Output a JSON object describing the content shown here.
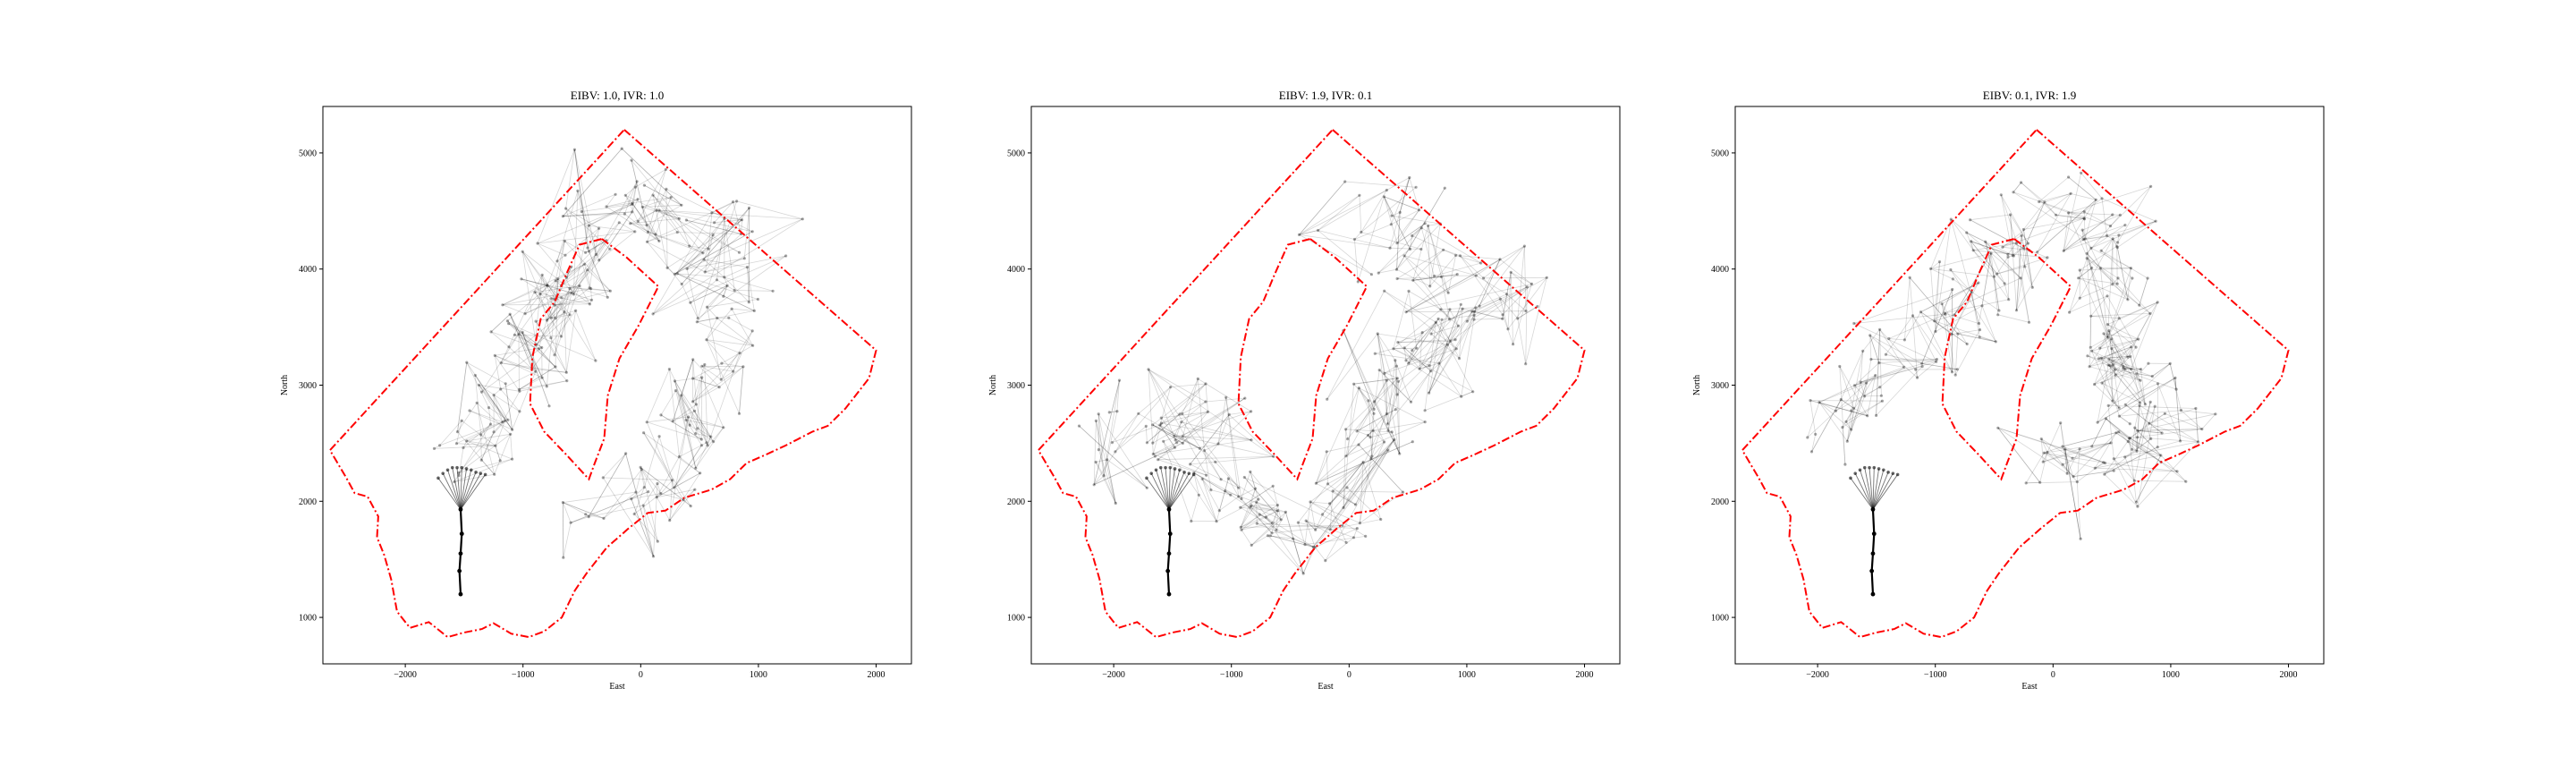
{
  "chart_data": [
    {
      "type": "line",
      "title": "EIBV: 1.0, IVR: 1.0",
      "xlabel": "East",
      "ylabel": "North",
      "xlim": [
        -2700,
        2300
      ],
      "ylim": [
        600,
        5400
      ],
      "xticks": [
        -2000,
        -1000,
        0,
        1000,
        2000
      ],
      "xtick_labels": [
        "−2000",
        "−1000",
        "0",
        "1000",
        "2000"
      ],
      "yticks": [
        1000,
        2000,
        3000,
        4000,
        5000
      ],
      "ytick_labels": [
        "1000",
        "2000",
        "3000",
        "4000",
        "5000"
      ],
      "grid": false,
      "density_centerline": [
        [
          -1500,
          2250
        ],
        [
          -1250,
          2700
        ],
        [
          -950,
          3300
        ],
        [
          -700,
          3850
        ],
        [
          -350,
          4350
        ],
        [
          50,
          4600
        ],
        [
          500,
          4300
        ],
        [
          750,
          3800
        ],
        [
          750,
          3200
        ],
        [
          450,
          2700
        ],
        [
          100,
          2200
        ],
        [
          -250,
          1800
        ]
      ],
      "spread": 230,
      "point_count": 260
    },
    {
      "type": "line",
      "title": "EIBV: 1.9, IVR: 0.1",
      "xlabel": "East",
      "ylabel": "North",
      "xlim": [
        -2700,
        2300
      ],
      "ylim": [
        600,
        5400
      ],
      "xticks": [
        -2000,
        -1000,
        0,
        1000,
        2000
      ],
      "xtick_labels": [
        "−2000",
        "−1000",
        "0",
        "1000",
        "2000"
      ],
      "yticks": [
        1000,
        2000,
        3000,
        4000,
        5000
      ],
      "ytick_labels": [
        "1000",
        "2000",
        "3000",
        "4000",
        "5000"
      ],
      "grid": false,
      "density_centerline": [
        [
          -2200,
          2450
        ],
        [
          -1600,
          2650
        ],
        [
          -1150,
          2350
        ],
        [
          -700,
          1950
        ],
        [
          -300,
          1700
        ],
        [
          100,
          2300
        ],
        [
          300,
          2900
        ],
        [
          550,
          3300
        ],
        [
          950,
          3600
        ],
        [
          1300,
          3700
        ],
        [
          700,
          4100
        ],
        [
          200,
          4350
        ],
        [
          -200,
          4450
        ]
      ],
      "spread": 230,
      "point_count": 260
    },
    {
      "type": "line",
      "title": "EIBV: 0.1, IVR: 1.9",
      "xlabel": "East",
      "ylabel": "North",
      "xlim": [
        -2700,
        2300
      ],
      "ylim": [
        600,
        5400
      ],
      "xticks": [
        -2000,
        -1000,
        0,
        1000,
        2000
      ],
      "xtick_labels": [
        "−2000",
        "−1000",
        "0",
        "1000",
        "2000"
      ],
      "yticks": [
        1000,
        2000,
        3000,
        4000,
        5000
      ],
      "ytick_labels": [
        "1000",
        "2000",
        "3000",
        "4000",
        "5000"
      ],
      "grid": false,
      "density_centerline": [
        [
          -2100,
          2650
        ],
        [
          -1450,
          3050
        ],
        [
          -900,
          3550
        ],
        [
          -450,
          4050
        ],
        [
          -50,
          4450
        ],
        [
          300,
          4550
        ],
        [
          550,
          4050
        ],
        [
          450,
          3400
        ],
        [
          700,
          3000
        ],
        [
          1000,
          2750
        ],
        [
          600,
          2500
        ],
        [
          0,
          2300
        ]
      ],
      "spread": 230,
      "point_count": 260
    }
  ],
  "shared": {
    "boundary_polygon": [
      [
        -140,
        5200
      ],
      [
        2000,
        3300
      ],
      [
        1940,
        3060
      ],
      [
        1740,
        2800
      ],
      [
        1590,
        2650
      ],
      [
        1460,
        2600
      ],
      [
        1230,
        2480
      ],
      [
        1060,
        2400
      ],
      [
        900,
        2330
      ],
      [
        760,
        2190
      ],
      [
        600,
        2100
      ],
      [
        370,
        2030
      ],
      [
        210,
        1920
      ],
      [
        60,
        1900
      ],
      [
        -110,
        1760
      ],
      [
        -290,
        1600
      ],
      [
        -460,
        1380
      ],
      [
        -560,
        1230
      ],
      [
        -670,
        1000
      ],
      [
        -820,
        880
      ],
      [
        -950,
        830
      ],
      [
        -1100,
        860
      ],
      [
        -1250,
        950
      ],
      [
        -1350,
        900
      ],
      [
        -1500,
        870
      ],
      [
        -1640,
        830
      ],
      [
        -1800,
        960
      ],
      [
        -1960,
        910
      ],
      [
        -2070,
        1050
      ],
      [
        -2120,
        1330
      ],
      [
        -2180,
        1540
      ],
      [
        -2240,
        1690
      ],
      [
        -2230,
        1870
      ],
      [
        -2320,
        2040
      ],
      [
        -2430,
        2070
      ],
      [
        -2500,
        2200
      ],
      [
        -2640,
        2440
      ]
    ],
    "hole_polygon": [
      [
        -330,
        4260
      ],
      [
        -120,
        4100
      ],
      [
        150,
        3850
      ],
      [
        -20,
        3510
      ],
      [
        -180,
        3230
      ],
      [
        -280,
        2910
      ],
      [
        -310,
        2540
      ],
      [
        -390,
        2330
      ],
      [
        -440,
        2190
      ],
      [
        -640,
        2410
      ],
      [
        -820,
        2600
      ],
      [
        -940,
        2840
      ],
      [
        -920,
        3240
      ],
      [
        -850,
        3570
      ],
      [
        -730,
        3720
      ],
      [
        -630,
        3960
      ],
      [
        -520,
        4210
      ]
    ],
    "start_path": [
      [
        -1530,
        1200
      ],
      [
        -1540,
        1400
      ],
      [
        -1530,
        1550
      ],
      [
        -1520,
        1720
      ],
      [
        -1530,
        1930
      ]
    ],
    "fan_origin": [
      -1530,
      1930
    ],
    "fan_targets": [
      [
        -1720,
        2200
      ],
      [
        -1680,
        2240
      ],
      [
        -1640,
        2270
      ],
      [
        -1600,
        2290
      ],
      [
        -1560,
        2290
      ],
      [
        -1520,
        2290
      ],
      [
        -1480,
        2280
      ],
      [
        -1440,
        2270
      ],
      [
        -1400,
        2250
      ],
      [
        -1360,
        2240
      ],
      [
        -1320,
        2230
      ]
    ],
    "colors": {
      "boundary": "#ff0000",
      "track": "#000000",
      "axes": "#000000",
      "background": "#ffffff"
    }
  }
}
